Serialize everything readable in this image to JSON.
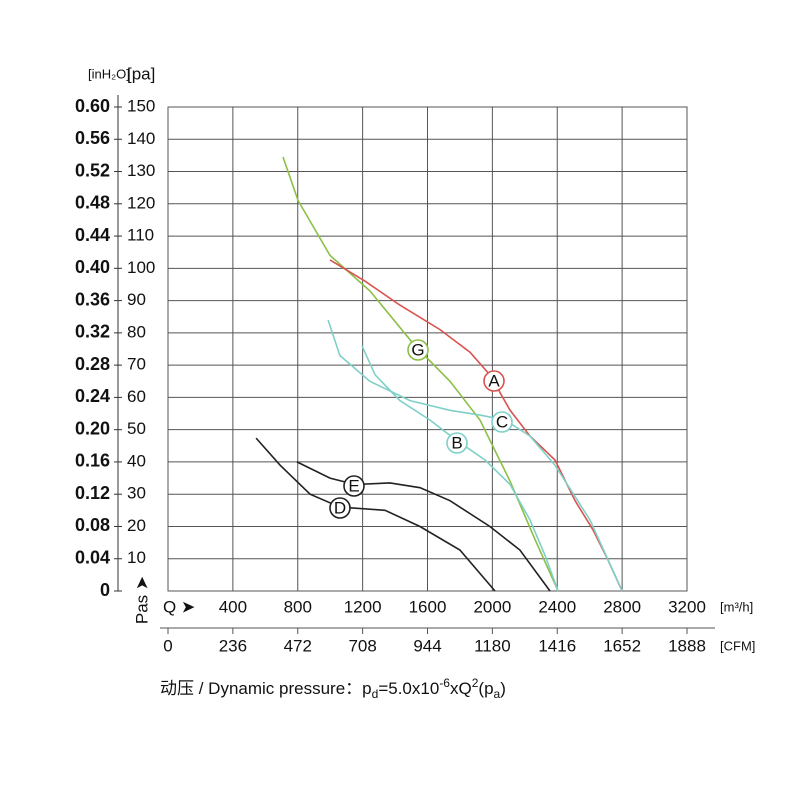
{
  "chart_data": {
    "type": "line",
    "xlim": [
      0,
      3200
    ],
    "xticks": [
      400,
      800,
      1200,
      1600,
      2000,
      2400,
      2800,
      3200
    ],
    "x_label": "Q ➤",
    "x_unit": "[m³/h]",
    "x2lim": [
      0,
      1888
    ],
    "x2ticks": [
      0,
      236,
      472,
      708,
      944,
      1180,
      1416,
      1652,
      1888
    ],
    "x2_unit": "[CFM]",
    "ylim": [
      0,
      150
    ],
    "yticks": [
      10,
      20,
      30,
      40,
      50,
      60,
      70,
      80,
      90,
      100,
      110,
      120,
      130,
      140,
      150
    ],
    "y_unit": "[pa]",
    "y_label": "Pas ➤",
    "y2lim": [
      0,
      0.6
    ],
    "y2ticks": [
      0,
      0.04,
      0.08,
      0.12,
      0.16,
      {
        "value": 0.2,
        "label": "0.20"
      },
      0.24,
      0.28,
      0.32,
      0.36,
      {
        "value": 0.4,
        "label": "0.40"
      },
      0.44,
      0.48,
      0.52,
      0.56,
      {
        "value": 0.6,
        "label": "0.60"
      }
    ],
    "y2_unit": "[inH₂O]",
    "grid": true,
    "series": [
      {
        "name": "G",
        "color": "#8cbf45",
        "x": [
          709,
          802,
          999,
          1245,
          1523,
          1739,
          1924,
          2109,
          2263,
          2405
        ],
        "values": [
          134.5,
          121,
          104,
          93,
          76,
          65,
          53,
          34,
          16,
          0
        ]
      },
      {
        "name": "A",
        "color": "#d9534f",
        "x": [
          999,
          1215,
          1430,
          1677,
          1862,
          1985,
          2109,
          2232,
          2386,
          2510,
          2620,
          2713,
          2800
        ],
        "values": [
          102.6,
          96,
          88.6,
          81,
          74,
          67,
          56,
          48,
          40.6,
          28,
          19,
          9.6,
          0
        ]
      },
      {
        "name": "C",
        "color": "#7fd0c8",
        "x": [
          987,
          1060,
          1245,
          1492,
          1739,
          1924,
          2078,
          2232,
          2386,
          2602,
          2800
        ],
        "values": [
          84,
          73,
          65,
          59,
          56,
          54.5,
          53,
          48,
          39,
          22,
          0
        ]
      },
      {
        "name": "B",
        "color": "#7fd0c8",
        "x": [
          1196,
          1277,
          1430,
          1615,
          1770,
          1955,
          2109,
          2232,
          2325,
          2405
        ],
        "values": [
          76,
          67,
          59,
          53,
          47,
          40.6,
          33,
          22,
          11,
          0
        ]
      },
      {
        "name": "E",
        "color": "#222222",
        "x": [
          795,
          999,
          1153,
          1369,
          1554,
          1739,
          1985,
          2170,
          2355
        ],
        "values": [
          40,
          35,
          33,
          33.5,
          32,
          28,
          20,
          12.7,
          0
        ]
      },
      {
        "name": "D",
        "color": "#222222",
        "x": [
          543,
          691,
          876,
          1060,
          1338,
          1554,
          1800,
          2016
        ],
        "values": [
          47.4,
          39,
          30,
          26,
          25,
          20,
          12.7,
          0
        ]
      }
    ],
    "formula": [
      {
        "text": "动压 / Dynamic pressure：",
        "pos": "base"
      },
      {
        "text": "p",
        "pos": "base"
      },
      {
        "text": "d",
        "pos": "sub"
      },
      {
        "text": "=5.0x10",
        "pos": "base"
      },
      {
        "text": "-6",
        "pos": "sup"
      },
      {
        "text": "xQ",
        "pos": "base"
      },
      {
        "text": "2",
        "pos": "sup"
      },
      {
        "text": "(p",
        "pos": "base"
      },
      {
        "text": "a",
        "pos": "sub"
      },
      {
        "text": ")",
        "pos": "base"
      }
    ]
  }
}
